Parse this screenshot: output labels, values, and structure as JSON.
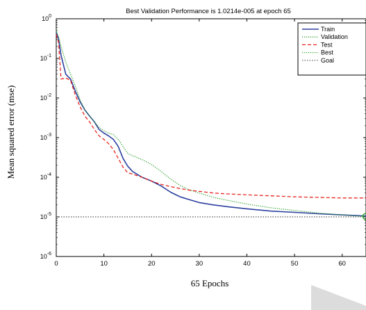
{
  "chart_data": {
    "type": "line",
    "title": "Best Validation Performance is 1.0214e-005 at epoch 65",
    "xlabel": "65 Epochs",
    "ylabel": "Mean squared error (mse)",
    "yscale": "log",
    "xlim": [
      0,
      65
    ],
    "ylim": [
      1e-06,
      1
    ],
    "x_ticks": [
      0,
      10,
      20,
      30,
      40,
      50,
      60
    ],
    "x_tick_labels": [
      "0",
      "10",
      "20",
      "30",
      "40",
      "50",
      "60"
    ],
    "y_ticks": [
      1e-06,
      1e-05,
      0.0001,
      0.001,
      0.01,
      0.1,
      1
    ],
    "y_tick_labels": [
      {
        "base": "10",
        "exp": "-6"
      },
      {
        "base": "10",
        "exp": "-5"
      },
      {
        "base": "10",
        "exp": "-4"
      },
      {
        "base": "10",
        "exp": "-3"
      },
      {
        "base": "10",
        "exp": "-2"
      },
      {
        "base": "10",
        "exp": "-1"
      },
      {
        "base": "10",
        "exp": "0"
      }
    ],
    "grid": false,
    "legend_position": "top-right",
    "legend": [
      "Train",
      "Validation",
      "Test",
      "Best",
      "Goal"
    ],
    "series": [
      {
        "name": "Train",
        "color": "#2b3f9e",
        "style": "solid",
        "x": [
          0,
          0.5,
          1,
          2,
          3,
          4,
          5,
          6,
          7,
          8,
          9,
          10,
          11,
          12,
          13,
          14,
          15,
          16,
          18,
          20,
          22,
          24,
          26,
          28,
          30,
          33,
          36,
          40,
          45,
          50,
          55,
          60,
          65
        ],
        "y": [
          0.45,
          0.3,
          0.12,
          0.04,
          0.03,
          0.015,
          0.008,
          0.005,
          0.0035,
          0.0025,
          0.0016,
          0.0013,
          0.0011,
          0.0009,
          0.0006,
          0.0003,
          0.00019,
          0.00014,
          0.0001,
          8e-05,
          6e-05,
          4.2e-05,
          3.2e-05,
          2.7e-05,
          2.3e-05,
          2e-05,
          1.8e-05,
          1.6e-05,
          1.4e-05,
          1.3e-05,
          1.2e-05,
          1.12e-05,
          1.05e-05
        ]
      },
      {
        "name": "Validation",
        "color": "#2ea02e",
        "style": "dotted",
        "x": [
          0,
          0.5,
          1,
          2,
          3,
          4,
          5,
          6,
          7,
          8,
          9,
          10,
          11,
          12,
          13,
          14,
          15,
          16,
          18,
          20,
          22,
          24,
          26,
          28,
          30,
          33,
          36,
          40,
          45,
          50,
          55,
          60,
          65
        ],
        "y": [
          0.5,
          0.35,
          0.2,
          0.08,
          0.04,
          0.02,
          0.009,
          0.005,
          0.0035,
          0.0025,
          0.0018,
          0.0015,
          0.0013,
          0.0012,
          0.0009,
          0.0006,
          0.0004,
          0.00035,
          0.00028,
          0.00021,
          0.00014,
          9e-05,
          6.2e-05,
          4.8e-05,
          4e-05,
          3.1e-05,
          2.6e-05,
          2.1e-05,
          1.7e-05,
          1.45e-05,
          1.25e-05,
          1.12e-05,
          1.02e-05
        ]
      },
      {
        "name": "Test",
        "color": "#e8231e",
        "style": "dashed",
        "x": [
          0,
          0.5,
          1,
          2,
          3,
          4,
          5,
          6,
          7,
          8,
          9,
          10,
          11,
          12,
          13,
          14,
          15,
          16,
          18,
          20,
          22,
          24,
          26,
          28,
          30,
          33,
          36,
          40,
          45,
          50,
          55,
          60,
          65
        ],
        "y": [
          0.4,
          0.25,
          0.03,
          0.032,
          0.028,
          0.012,
          0.006,
          0.0035,
          0.0025,
          0.0016,
          0.0011,
          0.0009,
          0.0007,
          0.0005,
          0.0003,
          0.00018,
          0.00013,
          0.00012,
          0.0001,
          8e-05,
          6.6e-05,
          5.8e-05,
          5.2e-05,
          4.7e-05,
          4.4e-05,
          4e-05,
          3.8e-05,
          3.6e-05,
          3.4e-05,
          3.2e-05,
          3.1e-05,
          3e-05,
          3e-05
        ]
      }
    ],
    "best": {
      "epoch": 65,
      "value": 1.0214e-05,
      "color": "#2ea02e"
    },
    "goal": {
      "value": 1e-05,
      "color": "#555555"
    }
  }
}
